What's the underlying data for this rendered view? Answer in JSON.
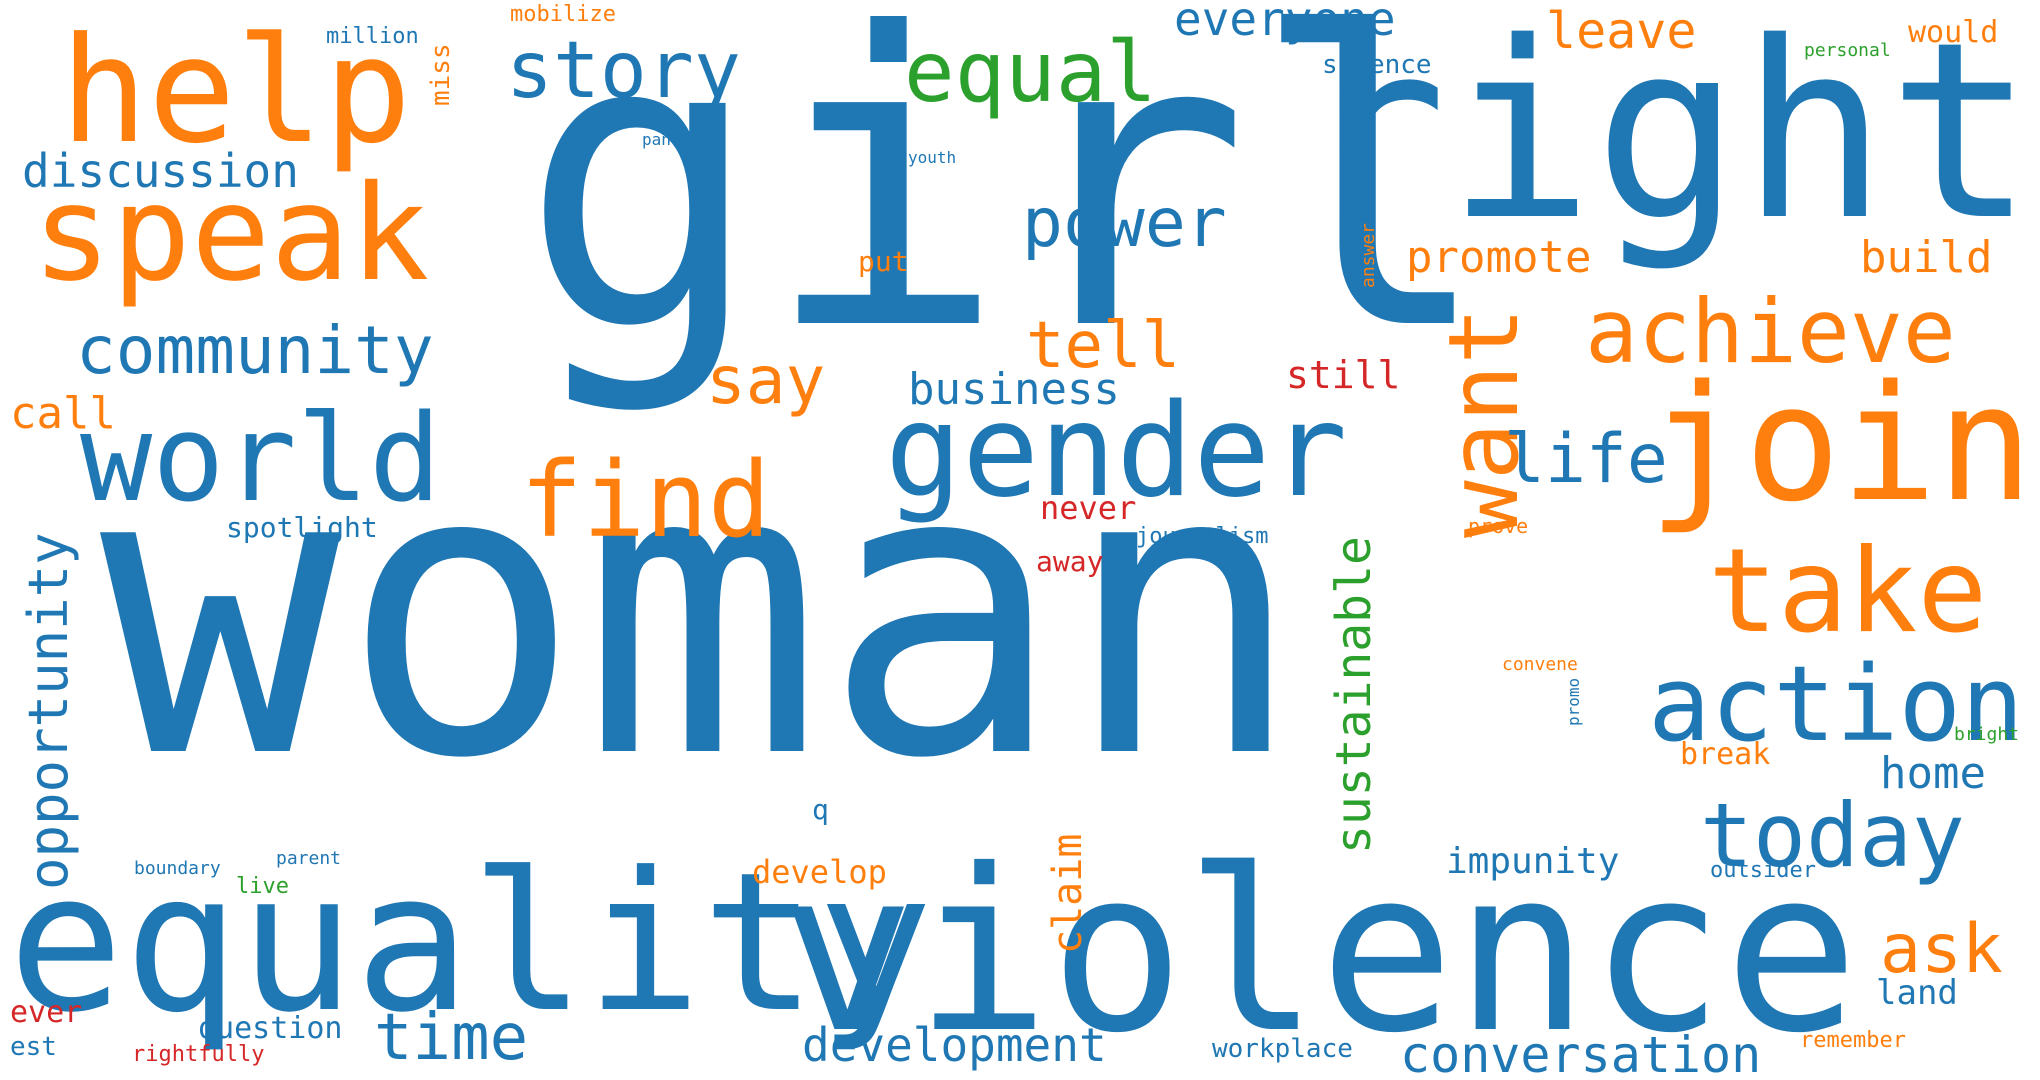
{
  "colors": {
    "blue": "#1f77b4",
    "orange": "#ff7f0e",
    "green": "#2ca02c",
    "red": "#d62728"
  },
  "words": [
    {
      "id": "woman",
      "text": "woman",
      "color": "blue"
    },
    {
      "id": "girl",
      "text": "girl",
      "color": "blue"
    },
    {
      "id": "right",
      "text": "right",
      "color": "blue"
    },
    {
      "id": "equality",
      "text": "equality",
      "color": "blue"
    },
    {
      "id": "violence",
      "text": "violence",
      "color": "blue"
    },
    {
      "id": "help",
      "text": "help",
      "color": "orange"
    },
    {
      "id": "speak",
      "text": "speak",
      "color": "orange"
    },
    {
      "id": "join",
      "text": "join",
      "color": "orange"
    },
    {
      "id": "gender",
      "text": "gender",
      "color": "blue"
    },
    {
      "id": "world",
      "text": "world",
      "color": "blue"
    },
    {
      "id": "take",
      "text": "take",
      "color": "orange"
    },
    {
      "id": "action",
      "text": "action",
      "color": "blue"
    },
    {
      "id": "achieve",
      "text": "achieve",
      "color": "orange"
    },
    {
      "id": "find",
      "text": "find",
      "color": "orange"
    },
    {
      "id": "today",
      "text": "today",
      "color": "blue"
    },
    {
      "id": "community",
      "text": "community",
      "color": "blue"
    },
    {
      "id": "equal",
      "text": "equal",
      "color": "green"
    },
    {
      "id": "story",
      "text": "story",
      "color": "blue"
    },
    {
      "id": "power",
      "text": "power",
      "color": "blue"
    },
    {
      "id": "want",
      "text": "want",
      "color": "orange"
    },
    {
      "id": "life",
      "text": "life",
      "color": "blue"
    },
    {
      "id": "say",
      "text": "say",
      "color": "orange"
    },
    {
      "id": "tell",
      "text": "tell",
      "color": "orange"
    },
    {
      "id": "time",
      "text": "time",
      "color": "blue"
    },
    {
      "id": "ask",
      "text": "ask",
      "color": "orange"
    },
    {
      "id": "development",
      "text": "development",
      "color": "blue"
    },
    {
      "id": "conversation",
      "text": "conversation",
      "color": "blue"
    },
    {
      "id": "opportunity",
      "text": "opportunity",
      "color": "blue"
    },
    {
      "id": "sustainable",
      "text": "sustainable",
      "color": "green"
    },
    {
      "id": "discussion",
      "text": "discussion",
      "color": "blue"
    },
    {
      "id": "everyone",
      "text": "everyone",
      "color": "blue"
    },
    {
      "id": "leave",
      "text": "leave",
      "color": "orange"
    },
    {
      "id": "promote",
      "text": "promote",
      "color": "orange"
    },
    {
      "id": "build",
      "text": "build",
      "color": "orange"
    },
    {
      "id": "business",
      "text": "business",
      "color": "blue"
    },
    {
      "id": "claim",
      "text": "claim",
      "color": "orange"
    },
    {
      "id": "home",
      "text": "home",
      "color": "blue"
    },
    {
      "id": "call",
      "text": "call",
      "color": "orange"
    },
    {
      "id": "still",
      "text": "still",
      "color": "red"
    },
    {
      "id": "impunity",
      "text": "impunity",
      "color": "blue"
    },
    {
      "id": "develop",
      "text": "develop",
      "color": "orange"
    },
    {
      "id": "break",
      "text": "break",
      "color": "orange"
    },
    {
      "id": "land",
      "text": "land",
      "color": "blue"
    },
    {
      "id": "spotlight",
      "text": "spotlight",
      "color": "blue"
    },
    {
      "id": "question",
      "text": "question",
      "color": "blue"
    },
    {
      "id": "never",
      "text": "never",
      "color": "red"
    },
    {
      "id": "away",
      "text": "away",
      "color": "red"
    },
    {
      "id": "would",
      "text": "would",
      "color": "orange"
    },
    {
      "id": "silence",
      "text": "silence",
      "color": "blue"
    },
    {
      "id": "workplace",
      "text": "workplace",
      "color": "blue"
    },
    {
      "id": "journalism",
      "text": "journalism",
      "color": "blue"
    },
    {
      "id": "put",
      "text": "put",
      "color": "orange"
    },
    {
      "id": "ever",
      "text": "ever",
      "color": "red"
    },
    {
      "id": "million",
      "text": "million",
      "color": "blue"
    },
    {
      "id": "mobilize",
      "text": "mobilize",
      "color": "orange"
    },
    {
      "id": "miss",
      "text": "miss",
      "color": "orange"
    },
    {
      "id": "est",
      "text": "est",
      "color": "blue"
    },
    {
      "id": "rightfully",
      "text": "rightfully",
      "color": "red"
    },
    {
      "id": "outsider",
      "text": "outsider",
      "color": "blue"
    },
    {
      "id": "remember",
      "text": "remember",
      "color": "orange"
    },
    {
      "id": "prove",
      "text": "prove",
      "color": "orange"
    },
    {
      "id": "personal",
      "text": "personal",
      "color": "green"
    },
    {
      "id": "convene",
      "text": "convene",
      "color": "orange"
    },
    {
      "id": "bright",
      "text": "bright",
      "color": "green"
    },
    {
      "id": "boundary",
      "text": "boundary",
      "color": "blue"
    },
    {
      "id": "parent",
      "text": "parent",
      "color": "blue"
    },
    {
      "id": "live",
      "text": "live",
      "color": "green"
    },
    {
      "id": "q",
      "text": "q",
      "color": "blue"
    },
    {
      "id": "pant",
      "text": "pant",
      "color": "blue"
    },
    {
      "id": "youth",
      "text": "youth",
      "color": "blue"
    },
    {
      "id": "answer",
      "text": "answer",
      "color": "orange"
    },
    {
      "id": "promo",
      "text": "promo",
      "color": "blue"
    }
  ]
}
